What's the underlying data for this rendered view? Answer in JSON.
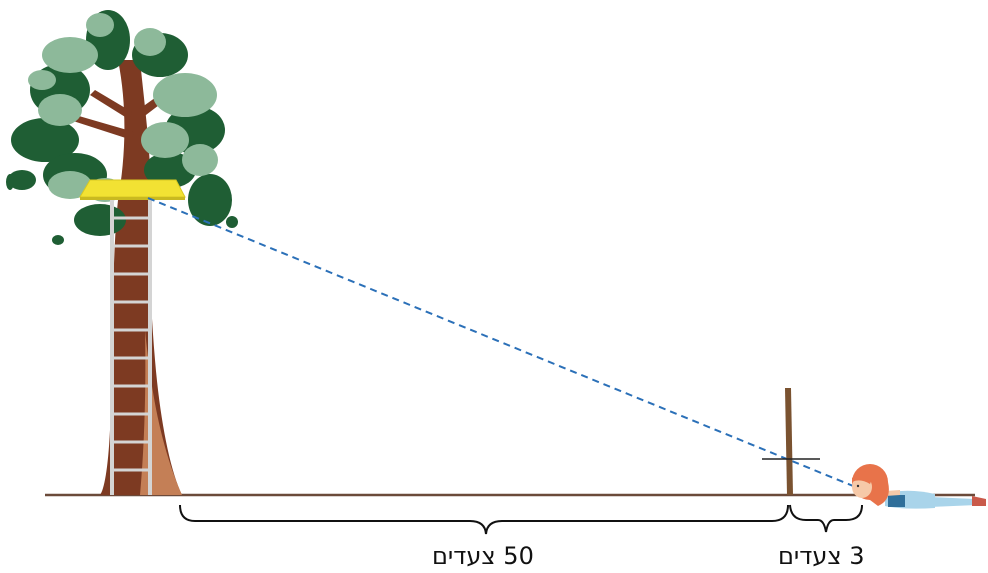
{
  "measurements": {
    "far_distance": "50 צעדים",
    "near_distance": "3 צעדים"
  },
  "colors": {
    "ground": "#6b4a3a",
    "trunk": "#7d3a22",
    "trunk_light": "#c47f56",
    "leaf_dark": "#1f5e34",
    "leaf_light": "#8db99a",
    "platform": "#f2e233",
    "ladder": "#d4d4d4",
    "sight_line": "#2b70b8",
    "stick": "#7a5230",
    "hair": "#e8734a",
    "shirt": "#a9d4ea",
    "skin": "#f6c9a8"
  },
  "icons": {
    "tree": "tree-icon",
    "ladder": "ladder-icon",
    "platform": "tree-house-platform",
    "stick": "measuring-stick",
    "girl": "lying-girl-figure"
  }
}
